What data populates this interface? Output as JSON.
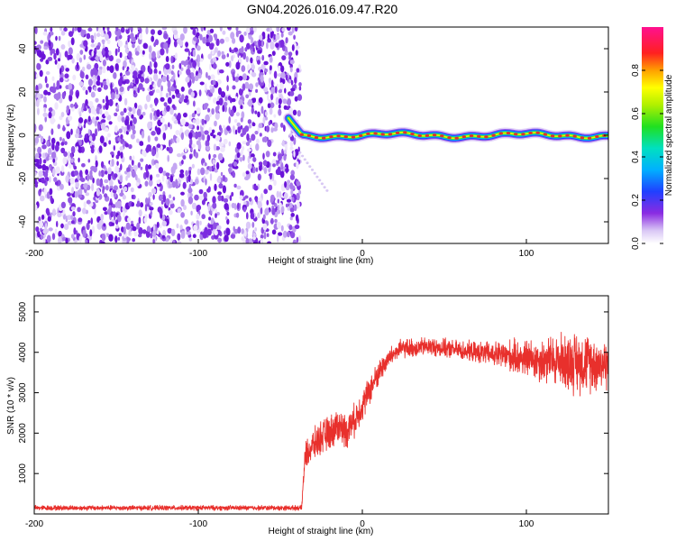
{
  "title": "GN04.2026.016.09.47.R20",
  "colors": {
    "axis": "#000000",
    "snr_line": "#e8302c",
    "speckle": "#7b2ae0",
    "ridge_core": "#e03030"
  },
  "chart_data": [
    {
      "type": "heatmap",
      "name": "spectrogram",
      "xlabel": "Height of straight line (km)",
      "ylabel": "Frequency (Hz)",
      "xlim": [
        -200,
        150
      ],
      "ylim": [
        -50,
        50
      ],
      "x_ticks": [
        -200,
        -100,
        0,
        100
      ],
      "y_ticks": [
        -40,
        -20,
        0,
        20,
        40
      ],
      "noise_region_x": [
        -200,
        -40
      ],
      "signal_ridge": {
        "x_start": -45,
        "x_end": 150,
        "frequency": 0,
        "start_frequency": 8
      },
      "colorbar": {
        "label": "Normalized spectral amplitude",
        "range": [
          0,
          1
        ],
        "ticks": [
          "0.0",
          "0.2",
          "0.4",
          "0.6",
          "0.8"
        ],
        "tick_values": [
          0,
          0.2,
          0.4,
          0.6,
          0.8
        ]
      }
    },
    {
      "type": "line",
      "name": "snr",
      "xlabel": "Height of straight line (km)",
      "ylabel": "SNR (10 * v/v)",
      "xlim": [
        -200,
        150
      ],
      "ylim": [
        0,
        5400
      ],
      "x_ticks": [
        -200,
        -100,
        0,
        100
      ],
      "y_ticks": [
        1000,
        2000,
        3000,
        4000,
        5000
      ],
      "series": [
        {
          "name": "SNR",
          "x": [
            -200,
            -150,
            -100,
            -50,
            -37,
            -35,
            -30,
            -25,
            -20,
            -15,
            -10,
            -5,
            0,
            5,
            10,
            15,
            20,
            25,
            30,
            40,
            50,
            60,
            70,
            80,
            90,
            100,
            110,
            120,
            130,
            140,
            150
          ],
          "values": [
            150,
            150,
            150,
            150,
            150,
            1400,
            1700,
            1900,
            2000,
            2200,
            2050,
            2300,
            2700,
            3100,
            3500,
            3800,
            4000,
            4100,
            4100,
            4150,
            4100,
            4050,
            4000,
            3950,
            3900,
            3850,
            3800,
            3800,
            3750,
            3750,
            3700
          ],
          "noise_amplitude": [
            60,
            60,
            60,
            60,
            60,
            350,
            380,
            400,
            420,
            420,
            420,
            400,
            380,
            350,
            300,
            250,
            230,
            230,
            230,
            220,
            220,
            230,
            250,
            300,
            400,
            450,
            550,
            650,
            750,
            700,
            600
          ]
        }
      ]
    }
  ]
}
